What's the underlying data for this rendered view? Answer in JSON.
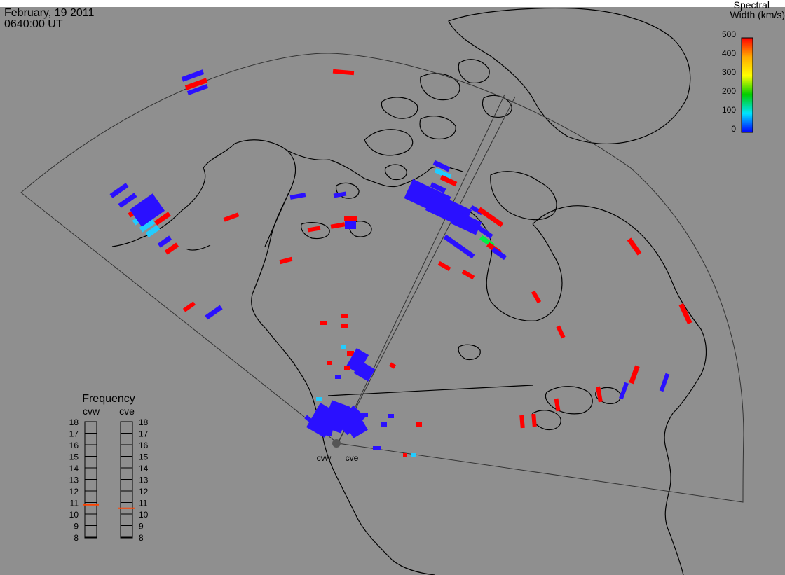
{
  "header": {
    "date": "February, 19 2011",
    "time": "0640:00 UT"
  },
  "colorbar": {
    "title_line1": "Spectral",
    "title_line2": "Width (km/s)",
    "ticks": [
      "500",
      "400",
      "300",
      "200",
      "100",
      "0"
    ],
    "range": [
      0,
      500
    ],
    "colors": [
      "#ff0000",
      "#ffaa00",
      "#ffff00",
      "#00cc00",
      "#00e5ff",
      "#0000ff"
    ]
  },
  "frequency": {
    "title": "Frequency",
    "radars": [
      {
        "name": "cvw",
        "value": 10.8
      },
      {
        "name": "cve",
        "value": 10.5
      }
    ],
    "ticks": [
      "18",
      "17",
      "16",
      "15",
      "14",
      "13",
      "12",
      "11",
      "10",
      "9",
      "8"
    ],
    "indicator_color": "#ff4400"
  },
  "stations": [
    "cvw",
    "cve"
  ],
  "colors": {
    "background": "#8f8f8f",
    "coast": "#000000",
    "fov": "#333333",
    "blue": "#2a10ff",
    "red": "#ff0000",
    "cyan": "#22ccff",
    "green": "#00ee44"
  }
}
